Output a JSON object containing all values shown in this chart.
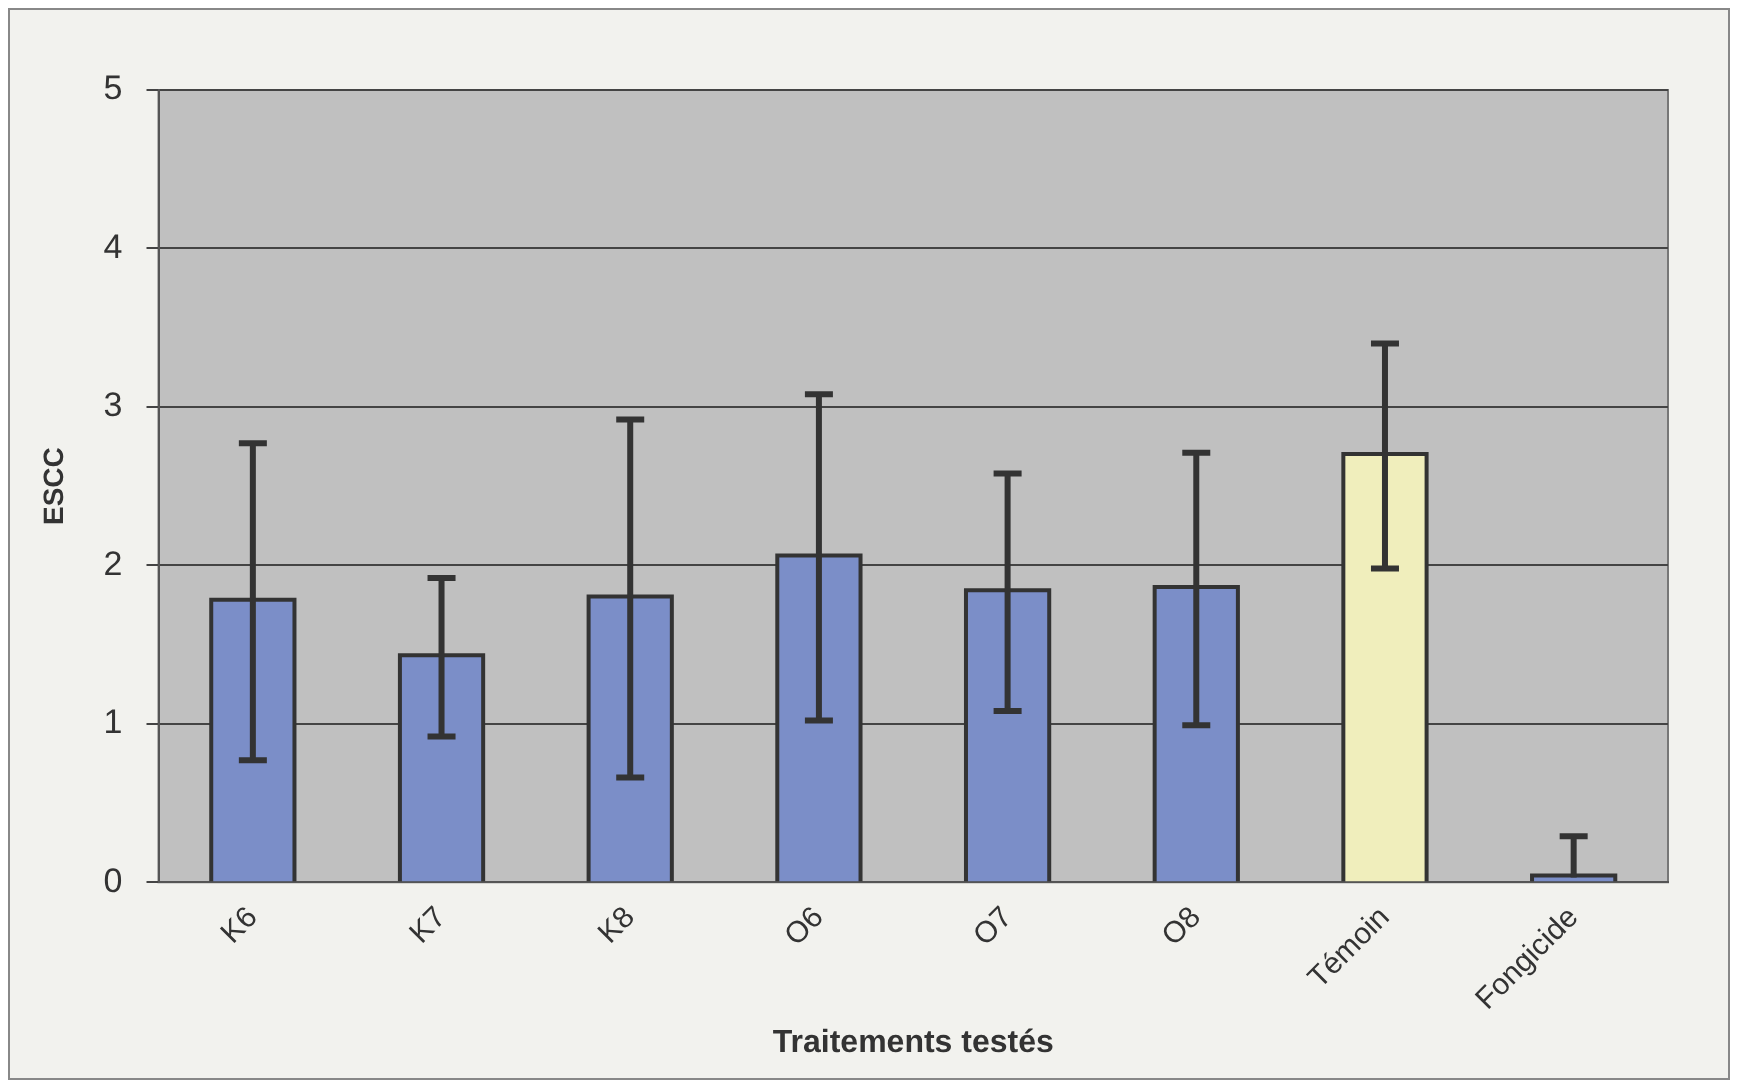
{
  "chart_data": {
    "type": "bar",
    "xlabel": "Traitements testés",
    "ylabel": "ESCC",
    "categories": [
      "K6",
      "K7",
      "K8",
      "O6",
      "O7",
      "O8",
      "Témoin",
      "Fongicide"
    ],
    "values": [
      1.77,
      1.42,
      1.79,
      2.05,
      1.83,
      1.85,
      2.69,
      0.03
    ],
    "errors": [
      1.0,
      0.5,
      1.13,
      1.03,
      0.75,
      0.86,
      0.71,
      [
        0.03,
        0.29
      ]
    ],
    "colors": [
      "#7b8ec8",
      "#7b8ec8",
      "#7b8ec8",
      "#7b8ec8",
      "#7b8ec8",
      "#7b8ec8",
      "#f0eebc",
      "#7b8ec8"
    ],
    "ylim": [
      0,
      5
    ],
    "yticks": [
      0,
      1,
      2,
      3,
      4,
      5
    ],
    "grid": "y",
    "legend": false
  }
}
